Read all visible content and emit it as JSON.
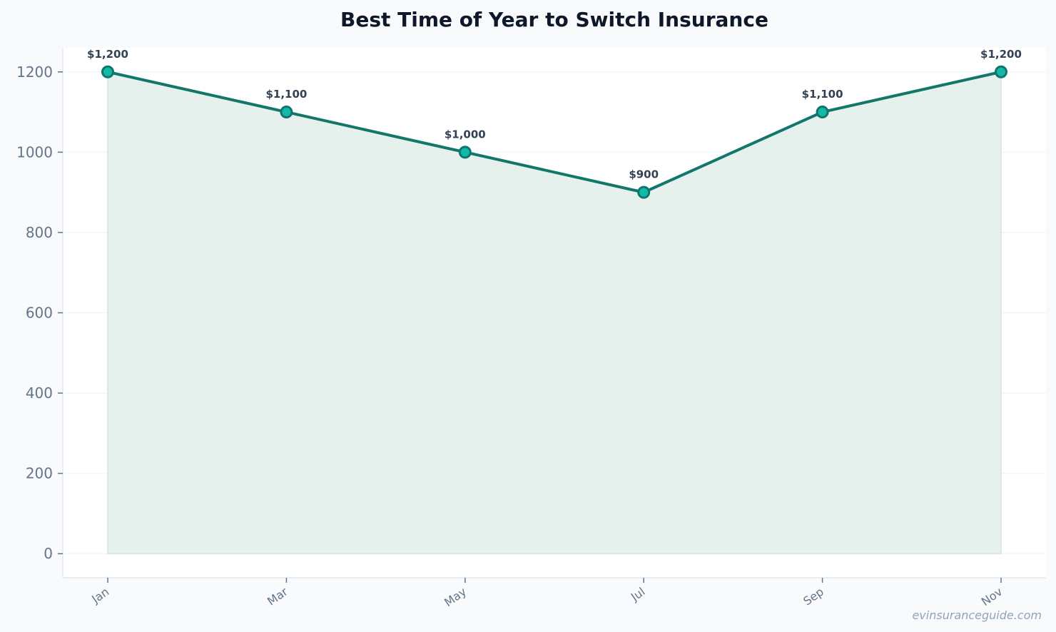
{
  "chart_data": {
    "type": "area",
    "title": "Best Time of Year to Switch Insurance",
    "xlabel": "",
    "ylabel": "",
    "categories": [
      "Jan",
      "Mar",
      "May",
      "Jul",
      "Sep",
      "Nov"
    ],
    "series": [
      {
        "values": [
          1200,
          1100,
          1000,
          900,
          1100,
          1200
        ],
        "data_labels": [
          "$1,200",
          "$1,100",
          "$1,000",
          "$900",
          "$1,100",
          "$1,200"
        ]
      }
    ],
    "ylim": [
      -60,
      1260
    ],
    "yticks": [
      0,
      200,
      400,
      600,
      800,
      1000,
      1200
    ],
    "grid": true,
    "legend": "none",
    "colors": {
      "line": "#13766b",
      "marker_fill": "#14b8a6",
      "marker_edge": "#0f766e",
      "area_fill": "#e6f1ee",
      "title": "#0f172a",
      "tick": "#64748b",
      "data_label": "#334155"
    }
  },
  "watermark": "evinsuranceguide.com"
}
